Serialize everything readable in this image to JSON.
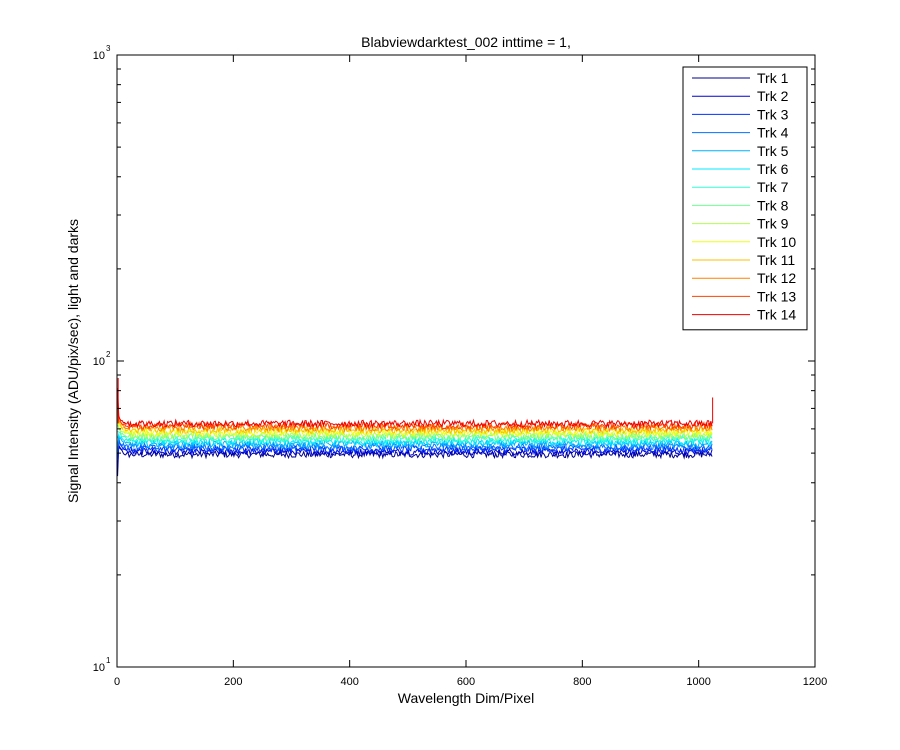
{
  "chart_data": {
    "type": "line",
    "title": "Blabviewdarktest_002 inttime = 1,",
    "xlabel": "Wavelength Dim/Pixel",
    "ylabel": "Signal Intensity (ADU/pix/sec), light and darks",
    "xlim": [
      0,
      1200
    ],
    "ylim": [
      10,
      1000
    ],
    "yscale": "log",
    "x_ticks": [
      0,
      200,
      400,
      600,
      800,
      1000,
      1200
    ],
    "x_tick_labels": [
      "0",
      "200",
      "400",
      "600",
      "800",
      "1000",
      "1200"
    ],
    "y_ticks": [
      10,
      100,
      1000
    ],
    "y_tick_labels": [
      {
        "base": "10",
        "exp": "1"
      },
      {
        "base": "10",
        "exp": "2"
      },
      {
        "base": "10",
        "exp": "3"
      }
    ],
    "grid": false,
    "legend_position": "top-right",
    "x_range": [
      1,
      1024
    ],
    "series": [
      {
        "name": "Trk 1",
        "color": "#00008f",
        "level": 49.5
      },
      {
        "name": "Trk 2",
        "color": "#0000d0",
        "level": 50.5
      },
      {
        "name": "Trk 3",
        "color": "#0030ff",
        "level": 51.5
      },
      {
        "name": "Trk 4",
        "color": "#0070ff",
        "level": 52.5
      },
      {
        "name": "Trk 5",
        "color": "#00b0ff",
        "level": 53.5
      },
      {
        "name": "Trk 6",
        "color": "#00e8ff",
        "level": 54.5
      },
      {
        "name": "Trk 7",
        "color": "#30ffd0",
        "level": 55.5
      },
      {
        "name": "Trk 8",
        "color": "#70ff90",
        "level": 56.5
      },
      {
        "name": "Trk 9",
        "color": "#b0ff50",
        "level": 57.5
      },
      {
        "name": "Trk 10",
        "color": "#f0ff10",
        "level": 58.5
      },
      {
        "name": "Trk 11",
        "color": "#ffc000",
        "level": 59.5
      },
      {
        "name": "Trk 12",
        "color": "#ff8000",
        "level": 60.5
      },
      {
        "name": "Trk 13",
        "color": "#ff4000",
        "level": 61.5
      },
      {
        "name": "Trk 14",
        "color": "#ee0000",
        "level": 62.5
      }
    ]
  }
}
